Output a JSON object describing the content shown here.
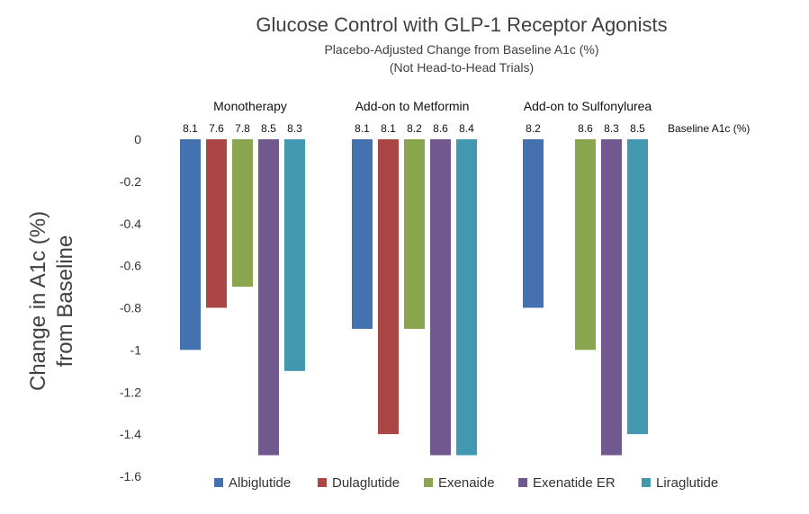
{
  "chart_data": {
    "type": "bar",
    "title": "Glucose Control with GLP-1 Receptor Agonists",
    "subtitle_lines": [
      "Placebo-Adjusted Change from Baseline A1c (%)",
      "(Not Head-to-Head Trials)"
    ],
    "ylabel_lines": [
      "Change in A1c (%)",
      "from Baseline"
    ],
    "ylim": [
      -1.6,
      0
    ],
    "yticks": [
      "0",
      "-0.2",
      "-0.4",
      "-0.6",
      "-0.8",
      "-1",
      "-1.2",
      "-1.4",
      "-1.6"
    ],
    "ytick_values": [
      0,
      -0.2,
      -0.4,
      -0.6,
      -0.8,
      -1,
      -1.2,
      -1.4,
      -1.6
    ],
    "grid": false,
    "legend_position": "bottom",
    "baseline_label": "Baseline A1c (%)",
    "categories": [
      "Monotherapy",
      "Add-on to Metformin",
      "Add-on to Sulfonylurea"
    ],
    "series": [
      {
        "name": "Albiglutide",
        "color": "#4472b0",
        "values": [
          -1.0,
          -0.9,
          -0.8
        ],
        "baseline": [
          "8.1",
          "8.1",
          "8.2"
        ]
      },
      {
        "name": "Dulaglutide",
        "color": "#aa4643",
        "values": [
          -0.8,
          -1.4,
          null
        ],
        "baseline": [
          "7.6",
          "8.1",
          ""
        ]
      },
      {
        "name": "Exenaide",
        "color": "#89a54e",
        "values": [
          -0.7,
          -0.9,
          -1.0
        ],
        "baseline": [
          "7.8",
          "8.2",
          "8.6"
        ]
      },
      {
        "name": "Exenatide ER",
        "color": "#71588f",
        "values": [
          -1.5,
          -1.5,
          -1.5
        ],
        "baseline": [
          "8.5",
          "8.6",
          "8.3"
        ]
      },
      {
        "name": "Liraglutide",
        "color": "#4198af",
        "values": [
          -1.1,
          -1.5,
          -1.4
        ],
        "baseline": [
          "8.3",
          "8.4",
          "8.5"
        ]
      }
    ]
  }
}
